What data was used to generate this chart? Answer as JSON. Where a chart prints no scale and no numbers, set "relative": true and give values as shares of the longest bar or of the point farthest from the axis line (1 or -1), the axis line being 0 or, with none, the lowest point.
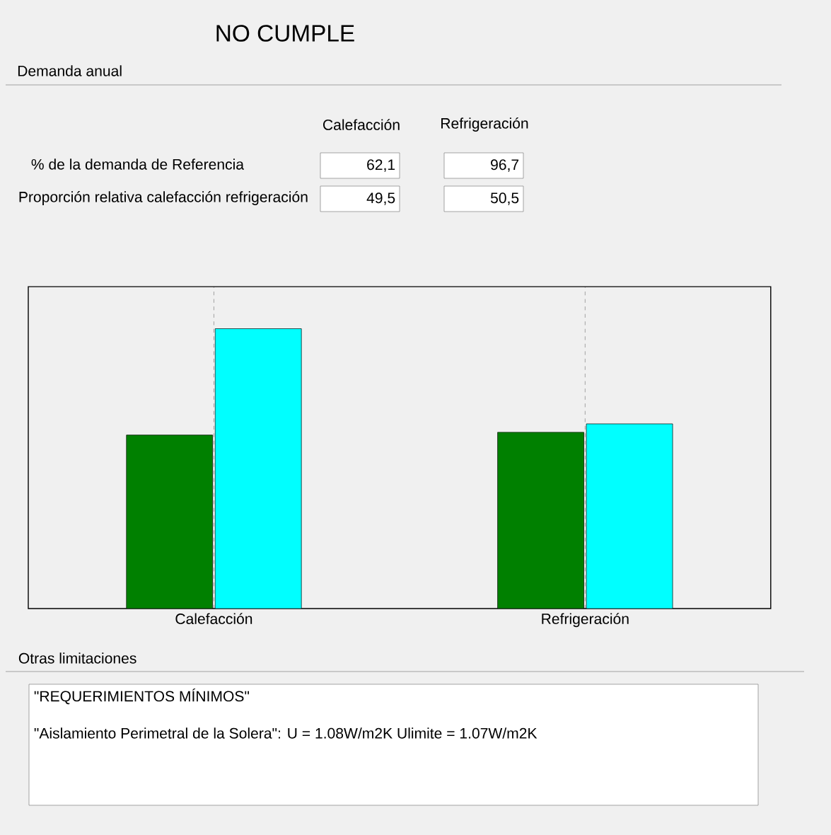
{
  "chart_data": {
    "type": "bar",
    "title": "NO CUMPLE",
    "subtitle": "Demanda anual",
    "categories": [
      "Calefacción",
      "Refrigeración"
    ],
    "relative": true,
    "grid": "x",
    "series": [
      {
        "color": "#008000",
        "values": [
          0.62,
          0.63
        ]
      },
      {
        "color": "#00ffff",
        "values": [
          1,
          0.66
        ]
      }
    ],
    "annotations": [
      "Calefacción",
      "Refrigeración",
      "% de la demanda de Referencia",
      "62,1",
      "96,7",
      "Proporción relativa calefacción refrigeración",
      "49,5",
      "50,5",
      "Otras limitaciones",
      "\"REQUERIMIENTOS MÍNIMOS\"",
      "\"Aislamiento Perimetral de la Solera\": U = 1.08W/m2K Ulimite = 1.07W/m2K"
    ]
  }
}
